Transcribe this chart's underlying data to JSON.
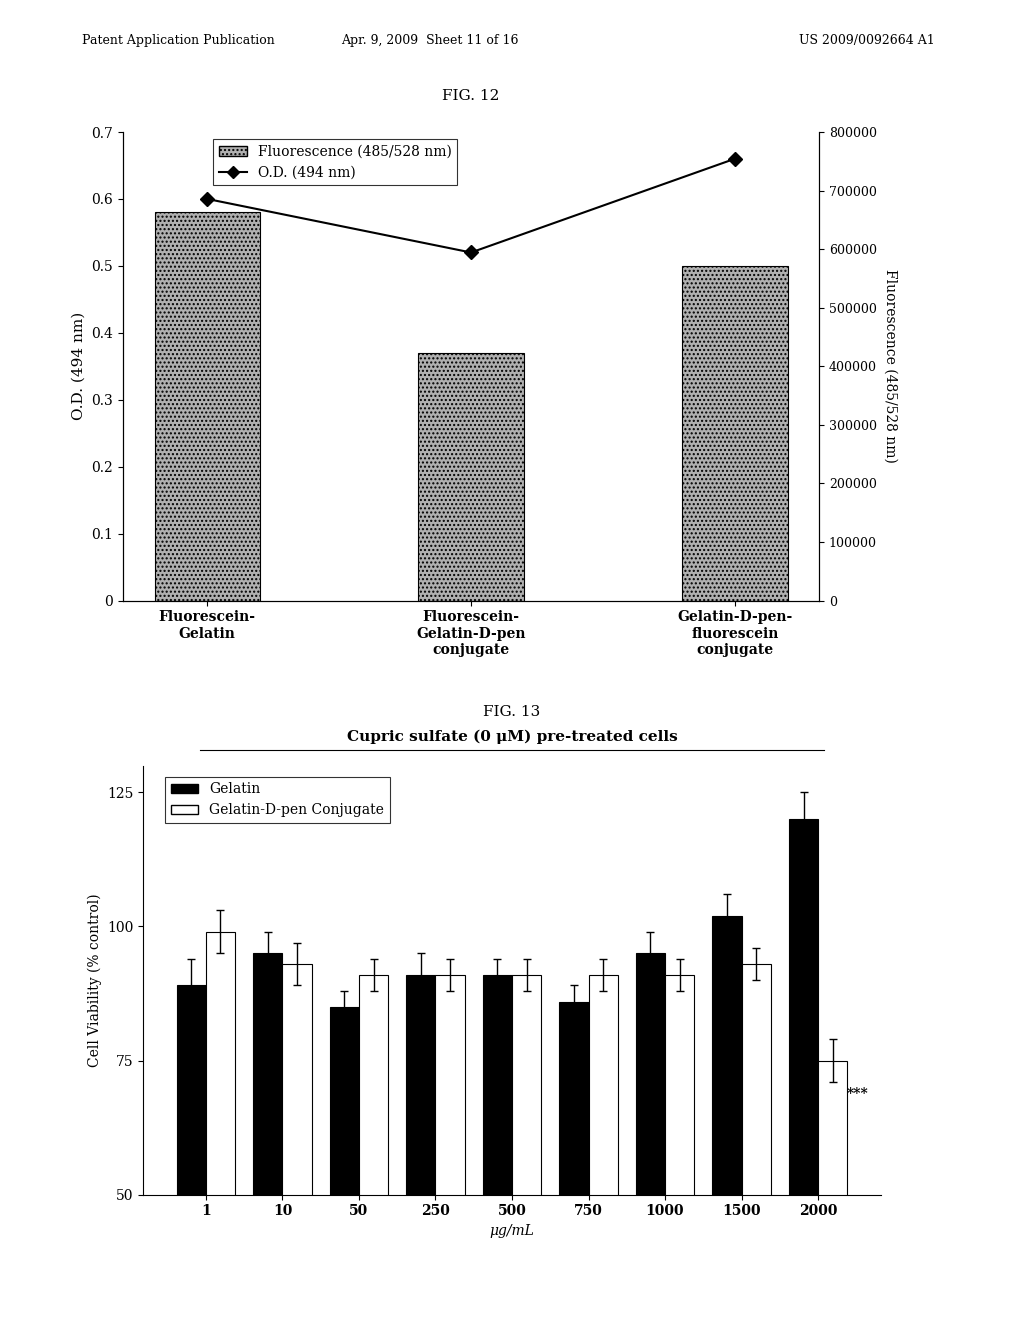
{
  "fig12": {
    "title": "FIG. 12",
    "categories": [
      "Fluorescein-\nGelatin",
      "Fluorescein-\nGelatin-D-pen\nconjugate",
      "Gelatin-D-pen-\nfluorescein\nconjugate"
    ],
    "bar_values": [
      0.58,
      0.37,
      0.5
    ],
    "line_values": [
      0.6,
      0.52,
      0.66
    ],
    "bar_color": "#b0b0b0",
    "line_color": "#000000",
    "marker": "D",
    "ylabel_left": "O.D. (494 nm)",
    "ylabel_right": "Fluorescence (485/528 nm)",
    "ylim_left": [
      0,
      0.7
    ],
    "ylim_right": [
      0,
      800000
    ],
    "yticks_left": [
      0,
      0.1,
      0.2,
      0.3,
      0.4,
      0.5,
      0.6,
      0.7
    ],
    "yticks_right": [
      0,
      100000,
      200000,
      300000,
      400000,
      500000,
      600000,
      700000,
      800000
    ],
    "legend_bar_label": "Fluorescence (485/528 nm)",
    "legend_line_label": "O.D. (494 nm)"
  },
  "fig13": {
    "title": "FIG. 13",
    "subtitle": "Cupric sulfate (0 μM) pre-treated cells",
    "categories": [
      "1",
      "10",
      "50",
      "250",
      "500",
      "750",
      "1000",
      "1500",
      "2000"
    ],
    "gelatin_values": [
      89,
      95,
      85,
      91,
      91,
      86,
      95,
      102,
      120
    ],
    "gelatin_errors": [
      5,
      4,
      3,
      4,
      3,
      3,
      4,
      4,
      5
    ],
    "conjugate_values": [
      99,
      93,
      91,
      91,
      91,
      91,
      91,
      93,
      75
    ],
    "conjugate_errors": [
      4,
      4,
      3,
      3,
      3,
      3,
      3,
      3,
      4
    ],
    "gelatin_color": "#000000",
    "conjugate_color": "#ffffff",
    "ylabel": "Cell Viability (% control)",
    "xlabel": "μg/mL",
    "ylim": [
      50,
      130
    ],
    "yticks": [
      50,
      75,
      100,
      125
    ],
    "annotation": "***"
  },
  "header_left": "Patent Application Publication",
  "header_mid": "Apr. 9, 2009  Sheet 11 of 16",
  "header_right": "US 2009/0092664 A1",
  "background_color": "#ffffff"
}
